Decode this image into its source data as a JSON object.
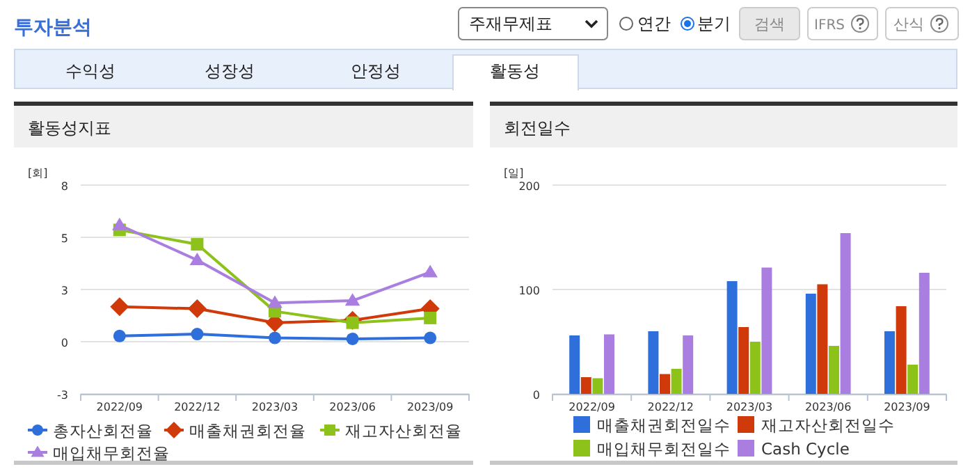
{
  "chart_data": [
    {
      "type": "other",
      "title": "투자분석",
      "annotations": [
        "주재무제표",
        "연간",
        "분기",
        "검색",
        "IFRS",
        "산식",
        "수익성",
        "성장성",
        "안정성",
        "활동성"
      ]
    },
    {
      "type": "line",
      "title": "활동성지표",
      "ylabel": "[회]",
      "categories": [
        "2022/09",
        "2022/12",
        "2023/03",
        "2023/06",
        "2023/09"
      ],
      "ylim": [
        -2.75,
        8.25
      ],
      "yticks": [
        {
          "value": -2.75,
          "label": "-3"
        },
        0,
        {
          "value": 2.75,
          "label": "3"
        },
        {
          "value": 5.5,
          "label": "5"
        },
        {
          "value": 8.25,
          "label": "8"
        }
      ],
      "grid": "y",
      "legend": "bottom",
      "series": [
        {
          "name": "총자산회전율",
          "color": "#2f6fdc",
          "marker": "circle",
          "values": [
            0.3,
            0.4,
            0.2,
            0.15,
            0.2
          ]
        },
        {
          "name": "매출채권회전율",
          "color": "#d03a0a",
          "marker": "diamond",
          "values": [
            1.84,
            1.74,
            1.0,
            1.13,
            1.74
          ]
        },
        {
          "name": "재고자산회전율",
          "color": "#8cc21a",
          "marker": "square",
          "values": [
            5.89,
            5.13,
            1.6,
            1.0,
            1.25
          ]
        },
        {
          "name": "매입채무회전율",
          "color": "#a97ee0",
          "marker": "triangle",
          "values": [
            6.14,
            4.3,
            2.04,
            2.16,
            3.66
          ]
        }
      ]
    },
    {
      "type": "bar",
      "title": "회전일수",
      "ylabel": "[일]",
      "categories": [
        "2022/09",
        "2022/12",
        "2023/03",
        "2023/06",
        "2023/09"
      ],
      "ylim": [
        0,
        200
      ],
      "yticks": [
        0,
        100,
        200
      ],
      "grid": "y",
      "legend": "bottom",
      "series": [
        {
          "name": "매출채권회전일수",
          "color": "#2f6fdc",
          "values": [
            56,
            60,
            108,
            96,
            60
          ]
        },
        {
          "name": "재고자산회전일수",
          "color": "#d03a0a",
          "values": [
            16,
            19,
            64,
            105,
            84
          ]
        },
        {
          "name": "매입채무회전일수",
          "color": "#8cc21a",
          "values": [
            15,
            24,
            50,
            46,
            28
          ]
        },
        {
          "name": "Cash Cycle",
          "color": "#a97ee0",
          "values": [
            57,
            56,
            121,
            154,
            116
          ]
        }
      ]
    }
  ]
}
